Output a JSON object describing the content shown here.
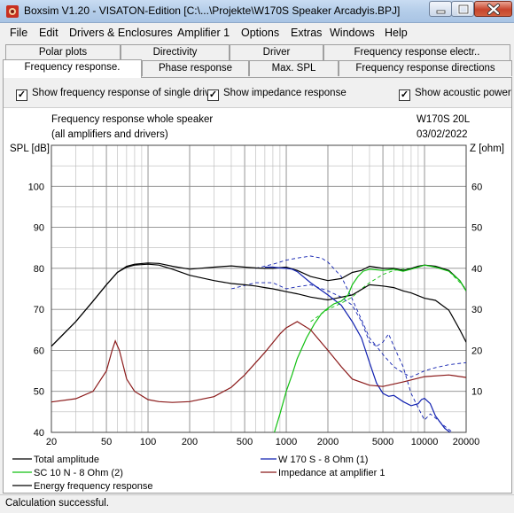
{
  "window": {
    "title": "Boxsim V1.20 - VISATON-Edition [C:\\...\\Projekte\\W170S Speaker Arcadyis.BPJ]"
  },
  "menu": [
    "File",
    "Edit",
    "Drivers & Enclosures",
    "Amplifier 1",
    "Options",
    "Extras",
    "Windows",
    "Help"
  ],
  "tabs": {
    "row1": [
      "Polar plots",
      "Directivity",
      "Driver",
      "Frequency response electr.."
    ],
    "row2": [
      "Frequency response.",
      "Phase response",
      "Max. SPL",
      "Frequency response directions"
    ],
    "active": "Frequency response."
  },
  "options": {
    "single_drive": "Show frequency response of single drive",
    "impedance": "Show impedance response",
    "acoustic_power": "Show acoustic power r",
    "checked_mark": "✓"
  },
  "plot": {
    "title_line1": "Frequency response whole speaker",
    "title_line2": "(all amplifiers and drivers)",
    "project": "W170S 20L",
    "date": "03/02/2022",
    "left_axis_label": "SPL [dB]",
    "right_axis_label": "Z [ohm]"
  },
  "legend": {
    "total": "Total amplitude",
    "w170": "W 170 S - 8 Ohm (1)",
    "sc10": "SC 10 N - 8 Ohm (2)",
    "impedance": "Impedance at amplifier 1",
    "energy": "Energy frequency response"
  },
  "status": "Calculation successful.",
  "colors": {
    "total": "#000000",
    "w170": "#1020b0",
    "sc10": "#10c010",
    "impedance": "#8b1a1a",
    "energy": "#000000",
    "grid": "#b8b8b8"
  },
  "chart_data": {
    "type": "line",
    "xscale": "log",
    "xlim": [
      20,
      20000
    ],
    "ylim": [
      40,
      110
    ],
    "y2lim": [
      0,
      70
    ],
    "x_ticks": [
      "20",
      "50",
      "100",
      "200",
      "500",
      "1000",
      "2000",
      "5000",
      "10000",
      "20000"
    ],
    "y_ticks": [
      "40",
      "50",
      "60",
      "70",
      "80",
      "90",
      "100"
    ],
    "y2_ticks": [
      "10",
      "20",
      "30",
      "40",
      "50",
      "60"
    ],
    "xlabel": "",
    "ylabel": "SPL [dB]",
    "y2label": "Z [ohm]",
    "series": [
      {
        "name": "Total amplitude",
        "key": "total",
        "axis": "left",
        "dash": "",
        "points": [
          [
            20,
            61
          ],
          [
            30,
            67
          ],
          [
            40,
            72
          ],
          [
            50,
            76
          ],
          [
            60,
            79
          ],
          [
            70,
            80.5
          ],
          [
            80,
            81
          ],
          [
            100,
            81.3
          ],
          [
            120,
            81.2
          ],
          [
            150,
            80.5
          ],
          [
            200,
            79.8
          ],
          [
            300,
            80.3
          ],
          [
            400,
            80.6
          ],
          [
            500,
            80.3
          ],
          [
            600,
            80.1
          ],
          [
            700,
            80
          ],
          [
            800,
            80
          ],
          [
            1000,
            80.3
          ],
          [
            1200,
            79.5
          ],
          [
            1500,
            78
          ],
          [
            2000,
            77
          ],
          [
            2500,
            77.5
          ],
          [
            3000,
            79
          ],
          [
            3500,
            79.5
          ],
          [
            4000,
            80.5
          ],
          [
            5000,
            80
          ],
          [
            6000,
            80
          ],
          [
            7000,
            79.5
          ],
          [
            8000,
            80
          ],
          [
            9000,
            80.5
          ],
          [
            10000,
            80.8
          ],
          [
            12000,
            80.5
          ],
          [
            15000,
            79.5
          ],
          [
            18000,
            77
          ],
          [
            20000,
            74.5
          ]
        ]
      },
      {
        "name": "Energy frequency response",
        "key": "energy",
        "axis": "left",
        "dash": "",
        "points": [
          [
            20,
            61
          ],
          [
            30,
            67
          ],
          [
            40,
            72
          ],
          [
            50,
            76
          ],
          [
            60,
            79
          ],
          [
            70,
            80.3
          ],
          [
            80,
            80.8
          ],
          [
            100,
            81
          ],
          [
            120,
            80.8
          ],
          [
            150,
            79.8
          ],
          [
            200,
            78.3
          ],
          [
            300,
            77
          ],
          [
            400,
            76.3
          ],
          [
            500,
            76
          ],
          [
            600,
            75.7
          ],
          [
            700,
            75.3
          ],
          [
            800,
            75
          ],
          [
            1000,
            74.3
          ],
          [
            1200,
            73.8
          ],
          [
            1500,
            73
          ],
          [
            2000,
            72.3
          ],
          [
            3000,
            73.5
          ],
          [
            4000,
            76
          ],
          [
            5000,
            75.7
          ],
          [
            6000,
            75.3
          ],
          [
            7000,
            74.5
          ],
          [
            8000,
            74
          ],
          [
            10000,
            72.7
          ],
          [
            12000,
            72.2
          ],
          [
            15000,
            69.8
          ],
          [
            18000,
            65
          ],
          [
            20000,
            62
          ]
        ]
      },
      {
        "name": "W 170 S - 8 Ohm (1)",
        "key": "w170",
        "axis": "left",
        "dash": "",
        "points": [
          [
            700,
            80.3
          ],
          [
            800,
            80.3
          ],
          [
            900,
            80.1
          ],
          [
            1000,
            80
          ],
          [
            1100,
            79.8
          ],
          [
            1200,
            79.2
          ],
          [
            1500,
            76.5
          ],
          [
            2000,
            73.5
          ],
          [
            2500,
            71
          ],
          [
            3000,
            67
          ],
          [
            3500,
            63
          ],
          [
            4000,
            57
          ],
          [
            4500,
            52
          ],
          [
            5000,
            49.5
          ],
          [
            5500,
            48.8
          ],
          [
            6000,
            49
          ],
          [
            7000,
            47.5
          ],
          [
            8000,
            46.5
          ],
          [
            9000,
            47
          ],
          [
            9500,
            48
          ],
          [
            10000,
            48.3
          ],
          [
            11000,
            47
          ],
          [
            12000,
            44
          ],
          [
            14000,
            41
          ],
          [
            16000,
            39.5
          ]
        ]
      },
      {
        "name": "SC 10 N - 8 Ohm (2)",
        "key": "sc10",
        "axis": "left",
        "dash": "",
        "points": [
          [
            820,
            40
          ],
          [
            900,
            44.5
          ],
          [
            1000,
            50
          ],
          [
            1100,
            54
          ],
          [
            1200,
            58
          ],
          [
            1400,
            63
          ],
          [
            1600,
            66.5
          ],
          [
            1800,
            69
          ],
          [
            2000,
            70.3
          ],
          [
            2200,
            71.3
          ],
          [
            2500,
            72
          ],
          [
            2800,
            73.5
          ],
          [
            3000,
            76
          ],
          [
            3300,
            78
          ],
          [
            3600,
            79.3
          ],
          [
            4000,
            79.8
          ],
          [
            5000,
            79.5
          ],
          [
            6000,
            79.8
          ],
          [
            7000,
            79.3
          ],
          [
            8000,
            79.8
          ],
          [
            9000,
            80.3
          ],
          [
            10000,
            80.8
          ],
          [
            12000,
            80.3
          ],
          [
            15000,
            79.3
          ],
          [
            18000,
            77
          ],
          [
            20000,
            74.5
          ]
        ]
      },
      {
        "name": "Impedance at amplifier 1",
        "key": "impedance",
        "axis": "right",
        "dash": "",
        "points": [
          [
            20,
            7.4
          ],
          [
            30,
            8.2
          ],
          [
            40,
            10
          ],
          [
            50,
            15
          ],
          [
            55,
            20
          ],
          [
            58,
            22.3
          ],
          [
            62,
            20
          ],
          [
            70,
            13
          ],
          [
            80,
            10
          ],
          [
            100,
            8
          ],
          [
            120,
            7.5
          ],
          [
            150,
            7.3
          ],
          [
            200,
            7.5
          ],
          [
            300,
            8.7
          ],
          [
            400,
            11
          ],
          [
            500,
            14
          ],
          [
            700,
            19.5
          ],
          [
            900,
            24
          ],
          [
            1000,
            25.5
          ],
          [
            1200,
            27
          ],
          [
            1500,
            25
          ],
          [
            2000,
            20
          ],
          [
            2500,
            16
          ],
          [
            3000,
            13
          ],
          [
            4000,
            11.5
          ],
          [
            5000,
            11.2
          ],
          [
            7000,
            12.3
          ],
          [
            10000,
            13.6
          ],
          [
            15000,
            14
          ],
          [
            20000,
            13.4
          ]
        ]
      },
      {
        "name": "W 170 S dashed",
        "key": "w170",
        "axis": "left",
        "dash": "4,3",
        "points": [
          [
            600,
            80
          ],
          [
            800,
            81
          ],
          [
            1000,
            82
          ],
          [
            1200,
            82.5
          ],
          [
            1500,
            83
          ],
          [
            1800,
            82.5
          ],
          [
            2000,
            81.5
          ],
          [
            2500,
            78
          ],
          [
            3000,
            72.5
          ],
          [
            3500,
            67.5
          ],
          [
            4000,
            63
          ],
          [
            4500,
            61
          ],
          [
            5000,
            62
          ],
          [
            5500,
            64
          ],
          [
            6000,
            61
          ],
          [
            7000,
            56
          ],
          [
            8000,
            49.5
          ],
          [
            9000,
            46
          ],
          [
            10000,
            43
          ],
          [
            11000,
            44.5
          ],
          [
            12000,
            43.5
          ],
          [
            14000,
            41.5
          ],
          [
            16000,
            40
          ]
        ]
      },
      {
        "name": "SC 10 N dashed",
        "key": "sc10",
        "axis": "left",
        "dash": "4,3",
        "points": [
          [
            1500,
            67
          ],
          [
            2000,
            70
          ],
          [
            2500,
            71.5
          ],
          [
            3000,
            73
          ],
          [
            3500,
            75
          ],
          [
            4000,
            76.5
          ],
          [
            5000,
            78.5
          ],
          [
            6000,
            79.5
          ],
          [
            7000,
            79.8
          ],
          [
            8000,
            80
          ],
          [
            10000,
            80.8
          ],
          [
            12000,
            80.3
          ],
          [
            15000,
            79.3
          ],
          [
            20000,
            75
          ]
        ]
      },
      {
        "name": "Impedance dashed",
        "key": "w170",
        "axis": "right",
        "dash": "4,3",
        "points": [
          [
            400,
            35
          ],
          [
            600,
            36.5
          ],
          [
            800,
            36.5
          ],
          [
            1000,
            35
          ],
          [
            1200,
            35.5
          ],
          [
            1500,
            36
          ],
          [
            2000,
            34.5
          ],
          [
            2500,
            33
          ],
          [
            3000,
            31
          ],
          [
            3500,
            27
          ],
          [
            4000,
            22
          ],
          [
            4500,
            21
          ],
          [
            5000,
            19
          ],
          [
            6000,
            16
          ],
          [
            7000,
            14.5
          ],
          [
            8000,
            13.5
          ],
          [
            10000,
            15
          ],
          [
            12000,
            15.8
          ],
          [
            15000,
            16.5
          ],
          [
            20000,
            17
          ]
        ]
      }
    ]
  }
}
